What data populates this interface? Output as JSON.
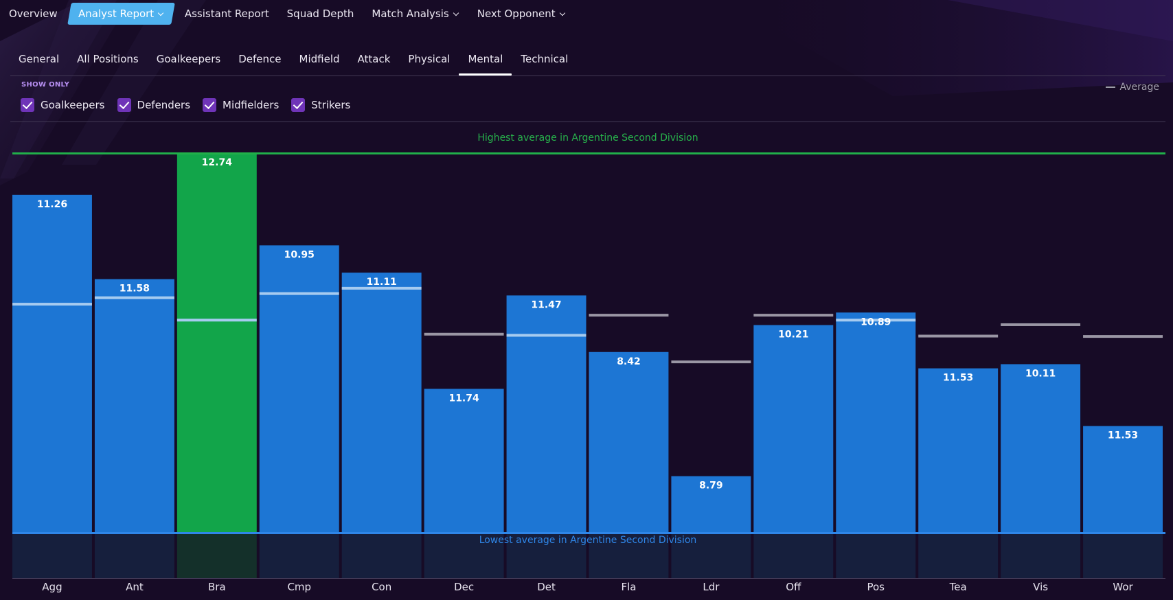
{
  "top_nav": {
    "items": [
      {
        "label": "Overview",
        "active": false,
        "dropdown": false
      },
      {
        "label": "Analyst Report",
        "active": true,
        "dropdown": true
      },
      {
        "label": "Assistant Report",
        "active": false,
        "dropdown": false
      },
      {
        "label": "Squad Depth",
        "active": false,
        "dropdown": false
      },
      {
        "label": "Match Analysis",
        "active": false,
        "dropdown": true
      },
      {
        "label": "Next Opponent",
        "active": false,
        "dropdown": true
      }
    ]
  },
  "sub_tabs": {
    "items": [
      "General",
      "All Positions",
      "Goalkeepers",
      "Defence",
      "Midfield",
      "Attack",
      "Physical",
      "Mental",
      "Technical"
    ],
    "active": "Mental"
  },
  "filters": {
    "title": "SHOW ONLY",
    "items": [
      {
        "label": "Goalkeepers",
        "checked": true
      },
      {
        "label": "Defenders",
        "checked": true
      },
      {
        "label": "Midfielders",
        "checked": true
      },
      {
        "label": "Strikers",
        "checked": true
      }
    ]
  },
  "legend": {
    "average_label": "Average"
  },
  "chart_data": {
    "type": "bar",
    "highest_label": "Highest average in Argentine Second Division",
    "lowest_label": "Lowest average in Argentine Second Division",
    "categories": [
      "Agg",
      "Ant",
      "Bra",
      "Cmp",
      "Con",
      "Dec",
      "Det",
      "Fla",
      "Ldr",
      "Off",
      "Pos",
      "Tea",
      "Vis",
      "Wor"
    ],
    "value_labels": [
      "11.26",
      "11.58",
      "12.74",
      "10.95",
      "11.11",
      "11.74",
      "11.47",
      "8.42",
      "8.79",
      "10.21",
      "10.89",
      "11.53",
      "10.11",
      "11.53"
    ],
    "bar_level_fraction": [
      0.89,
      0.668,
      1.0,
      0.757,
      0.685,
      0.379,
      0.625,
      0.476,
      0.149,
      0.547,
      0.58,
      0.433,
      0.444,
      0.281
    ],
    "average_level_fraction": [
      0.602,
      0.619,
      0.56,
      0.63,
      0.644,
      0.523,
      0.52,
      0.573,
      0.45,
      0.573,
      0.56,
      0.518,
      0.548,
      0.517
    ],
    "highlighted": "Bra",
    "colors": {
      "bar": "#1d76d4",
      "highlight": "#12a54a",
      "average_on_bar": "#a6cbf0",
      "average_off_bar": "#9a96a4",
      "highest_line": "#21b04a",
      "lowest_line": "#2f86e8",
      "below_area": "#161f3d",
      "below_area_highlight": "#14302a"
    }
  }
}
